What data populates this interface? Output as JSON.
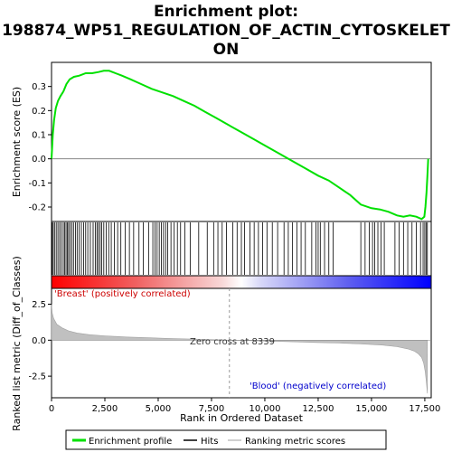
{
  "chart_data": {
    "type": "line",
    "title_lines": [
      "Enrichment plot:",
      "198874_WP51_REGULATION_OF_ACTIN_CYTOSKELET",
      "ON"
    ],
    "xlabel": "Rank in Ordered Dataset",
    "es_ylabel": "Enrichment score (ES)",
    "metric_ylabel": "Ranked list metric (Diff_of_Classes)",
    "xlim": [
      0,
      17800
    ],
    "x_ticks": [
      0,
      2500,
      5000,
      7500,
      10000,
      12500,
      15000,
      17500
    ],
    "x_tick_labels": [
      "0",
      "2,500",
      "5,000",
      "7,500",
      "10,000",
      "12,500",
      "15,000",
      "17,500"
    ],
    "es_ylim": [
      -0.26,
      0.4
    ],
    "es_ticks": [
      -0.2,
      -0.1,
      0.0,
      0.1,
      0.2,
      0.3
    ],
    "es_tick_labels": [
      "-0.2",
      "-0.1",
      "0.0",
      "0.1",
      "0.2",
      "0.3"
    ],
    "metric_ylim": [
      -4.0,
      3.6
    ],
    "metric_ticks": [
      -2.5,
      0.0,
      2.5
    ],
    "metric_tick_labels": [
      "-2.5",
      "0.0",
      "2.5"
    ],
    "series": [
      {
        "name": "Enrichment profile",
        "color": "#00e000",
        "x": [
          0,
          60,
          120,
          200,
          300,
          420,
          560,
          700,
          850,
          1050,
          1300,
          1600,
          1900,
          2200,
          2450,
          2700,
          3000,
          3300,
          3700,
          4200,
          4700,
          5200,
          5700,
          6200,
          6700,
          7200,
          7700,
          8300,
          8900,
          9500,
          10100,
          10700,
          11300,
          11900,
          12500,
          13000,
          13500,
          14000,
          14500,
          15000,
          15400,
          15800,
          16200,
          16500,
          16800,
          17100,
          17350,
          17480,
          17530,
          17580,
          17620,
          17660
        ],
        "y": [
          0.0,
          0.1,
          0.16,
          0.21,
          0.24,
          0.26,
          0.28,
          0.31,
          0.33,
          0.34,
          0.345,
          0.355,
          0.355,
          0.36,
          0.365,
          0.365,
          0.355,
          0.345,
          0.33,
          0.31,
          0.29,
          0.275,
          0.26,
          0.24,
          0.22,
          0.195,
          0.17,
          0.14,
          0.11,
          0.08,
          0.05,
          0.02,
          -0.01,
          -0.04,
          -0.07,
          -0.09,
          -0.12,
          -0.15,
          -0.19,
          -0.205,
          -0.21,
          -0.22,
          -0.235,
          -0.24,
          -0.235,
          -0.24,
          -0.25,
          -0.24,
          -0.2,
          -0.14,
          -0.07,
          0.0
        ]
      },
      {
        "name": "Hits",
        "color": "#000000",
        "hit_positions": [
          30,
          80,
          140,
          220,
          300,
          380,
          460,
          550,
          620,
          680,
          740,
          800,
          870,
          950,
          1030,
          1120,
          1200,
          1300,
          1400,
          1500,
          1600,
          1700,
          1820,
          1950,
          2050,
          2130,
          2200,
          2280,
          2350,
          2450,
          2560,
          2680,
          2800,
          2950,
          3100,
          3250,
          3450,
          3650,
          3850,
          4100,
          4300,
          4550,
          4750,
          4850,
          4950,
          5050,
          5150,
          5250,
          5350,
          5450,
          5600,
          5750,
          5900,
          6050,
          6250,
          6500,
          6900,
          7300,
          7600,
          7800,
          8000,
          8200,
          8500,
          8700,
          8900,
          9050,
          9300,
          9500,
          9700,
          9900,
          10100,
          10350,
          10600,
          10900,
          11100,
          11300,
          11500,
          11700,
          11900,
          12200,
          12400,
          12500,
          12600,
          12800,
          13000,
          13200,
          14500,
          14700,
          14900,
          15050,
          15150,
          15300,
          15450,
          15600,
          16100,
          16300,
          16500,
          16700,
          16900,
          17100,
          17300,
          17420,
          17500,
          17560,
          17620
        ]
      },
      {
        "name": "Ranking metric scores",
        "color": "#c0c0c0",
        "x": [
          0,
          30,
          100,
          250,
          500,
          800,
          1200,
          1800,
          2500,
          3500,
          4500,
          5500,
          6500,
          7500,
          8339,
          9500,
          10500,
          11500,
          12500,
          13500,
          14500,
          15500,
          16200,
          16700,
          17000,
          17200,
          17350,
          17450,
          17520,
          17580,
          17620
        ],
        "y": [
          2.5,
          1.9,
          1.5,
          1.1,
          0.85,
          0.65,
          0.5,
          0.38,
          0.3,
          0.22,
          0.17,
          0.12,
          0.08,
          0.04,
          0.0,
          -0.04,
          -0.08,
          -0.12,
          -0.16,
          -0.2,
          -0.26,
          -0.34,
          -0.45,
          -0.6,
          -0.75,
          -0.95,
          -1.2,
          -1.6,
          -2.2,
          -3.0,
          -3.7
        ]
      }
    ],
    "annotations": {
      "positive_label": "'Breast' (positively correlated)",
      "negative_label": "'Blood' (negatively correlated)",
      "zero_cross_label": "Zero cross at 8339",
      "zero_cross": 8339,
      "positive_color": "#cc0000",
      "negative_color": "#0000cc"
    },
    "legend": {
      "placement": "bottom",
      "items": [
        "Enrichment profile",
        "Hits",
        "Ranking metric scores"
      ]
    },
    "colors": {
      "es_line": "#00e000",
      "hits": "#000000",
      "metric_fill": "#c0c0c0",
      "border": "#000000"
    }
  }
}
